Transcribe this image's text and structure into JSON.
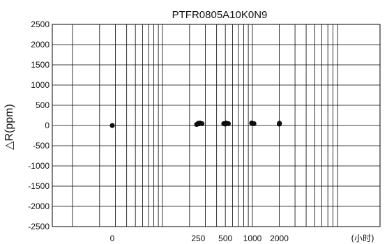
{
  "chart_data": {
    "type": "scatter",
    "title": "PTFR0805A10K0N9",
    "ylabel": "△R(ppm)",
    "x_unit_label": "(小时)",
    "ylim": [
      -2500,
      2500
    ],
    "y_ticks": [
      2500,
      2000,
      1500,
      1000,
      500,
      0,
      -500,
      -1000,
      -1500,
      -2000,
      -2500
    ],
    "x_ticks": [
      {
        "value": 0,
        "label": "0"
      },
      {
        "value": 250,
        "label": "250"
      },
      {
        "value": 500,
        "label": "500"
      },
      {
        "value": 1000,
        "label": "1000"
      },
      {
        "value": 2000,
        "label": "2000"
      }
    ],
    "x_axis_scale": "log-like (hours); 0 shown as separate decade start",
    "grid": true,
    "series": [
      {
        "points": [
          {
            "x": 0,
            "y": 0
          },
          {
            "x": 240,
            "y": 25
          },
          {
            "x": 250,
            "y": 55
          },
          {
            "x": 255,
            "y": 40
          },
          {
            "x": 262,
            "y": 60
          },
          {
            "x": 275,
            "y": 45
          },
          {
            "x": 480,
            "y": 45
          },
          {
            "x": 500,
            "y": 35
          },
          {
            "x": 510,
            "y": 60
          },
          {
            "x": 540,
            "y": 45
          },
          {
            "x": 980,
            "y": 60
          },
          {
            "x": 1000,
            "y": 50
          },
          {
            "x": 1040,
            "y": 45
          },
          {
            "x": 2000,
            "y": 35
          },
          {
            "x": 2010,
            "y": 55
          }
        ]
      }
    ]
  }
}
